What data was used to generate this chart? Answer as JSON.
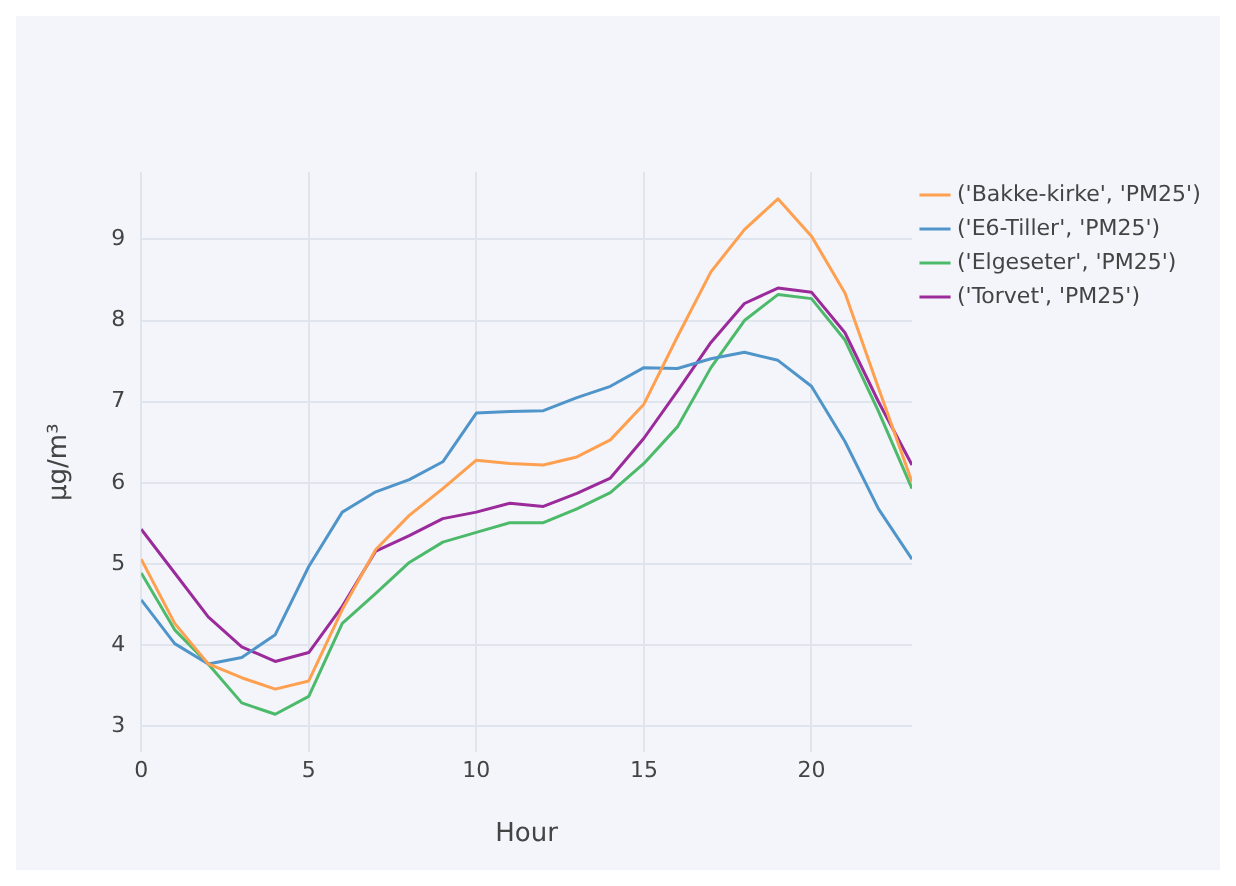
{
  "chart_data": {
    "type": "line",
    "xlabel": "Hour",
    "ylabel": "μg/m³",
    "x": [
      0,
      1,
      2,
      3,
      4,
      5,
      6,
      7,
      8,
      9,
      10,
      11,
      12,
      13,
      14,
      15,
      16,
      17,
      18,
      19,
      20,
      21,
      22,
      23
    ],
    "series": [
      {
        "name": "('Bakke-kirke', 'PM25')",
        "color": "#fea04f",
        "values": [
          5.06,
          4.27,
          3.77,
          3.6,
          3.46,
          3.56,
          4.44,
          5.18,
          5.6,
          5.93,
          6.28,
          6.24,
          6.22,
          6.32,
          6.53,
          6.97,
          7.8,
          8.6,
          9.12,
          9.5,
          9.04,
          8.34,
          7.17,
          6.01
        ]
      },
      {
        "name": "('E6-Tiller', 'PM25')",
        "color": "#5095c9",
        "values": [
          4.56,
          4.02,
          3.77,
          3.85,
          4.13,
          4.97,
          5.64,
          5.89,
          6.04,
          6.26,
          6.86,
          6.88,
          6.89,
          7.05,
          7.19,
          7.42,
          7.41,
          7.53,
          7.61,
          7.51,
          7.19,
          6.51,
          5.68,
          5.06
        ]
      },
      {
        "name": "('Elgeseter', 'PM25')",
        "color": "#4cba6a",
        "values": [
          4.89,
          4.19,
          3.77,
          3.29,
          3.15,
          3.37,
          4.27,
          4.64,
          5.02,
          5.27,
          5.39,
          5.51,
          5.51,
          5.68,
          5.88,
          6.24,
          6.69,
          7.42,
          8.0,
          8.32,
          8.27,
          7.76,
          6.88,
          5.93
        ]
      },
      {
        "name": "('Torvet', 'PM25')",
        "color": "#9b2a9b",
        "values": [
          5.43,
          4.89,
          4.35,
          3.98,
          3.8,
          3.91,
          4.48,
          5.16,
          5.35,
          5.56,
          5.64,
          5.75,
          5.71,
          5.87,
          6.06,
          6.55,
          7.13,
          7.73,
          8.21,
          8.4,
          8.35,
          7.85,
          7.0,
          6.22
        ]
      }
    ],
    "xlim": [
      0,
      23
    ],
    "xticks": [
      0,
      5,
      10,
      15,
      20
    ],
    "ylim": [
      2.68,
      9.83
    ],
    "yticks": [
      3,
      4,
      5,
      6,
      7,
      8,
      9
    ],
    "grid": true,
    "legend": "top right",
    "marker": "none",
    "line_style": "solid"
  }
}
